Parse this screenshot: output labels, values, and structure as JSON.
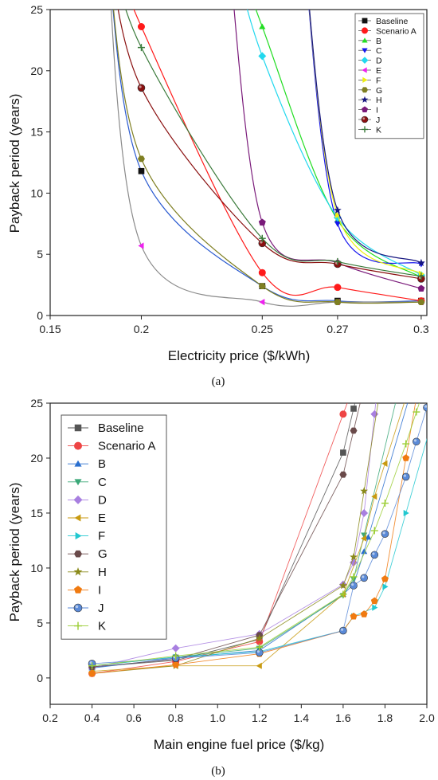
{
  "colors": {
    "Baseline": "#111111",
    "Scenario A": "#ff1a1a",
    "B": "#22dd22",
    "C": "#1515ee",
    "D": "#22d8ee",
    "E": "#ee22ee",
    "F": "#eeee11",
    "G": "#7f7f22",
    "H": "#161680",
    "I": "#7a1a7a",
    "J": "#8a1010",
    "K": "#3a7a3a"
  },
  "colors_b": {
    "Baseline": "#555555",
    "Scenario A": "#ee4444",
    "B": "#2a6fcf",
    "C": "#3aa878",
    "D": "#a87fe0",
    "E": "#c89a10",
    "F": "#22c8d0",
    "G": "#6a4a4a",
    "H": "#8a8a1a",
    "I": "#f07a10",
    "J": "#5a8ad8",
    "K": "#9acd32"
  },
  "chart_data": [
    {
      "type": "line",
      "caption": "(a)",
      "xlabel": "Electricity price ($/kWh)",
      "ylabel": "Payback period (years)",
      "xlim": [
        0.15,
        0.3
      ],
      "ylim": [
        0,
        25
      ],
      "xticks": [
        "0.15",
        "0.2",
        "0.25",
        "0.27",
        "0.3"
      ],
      "yticks": [
        "0",
        "5",
        "10",
        "15",
        "20",
        "25"
      ],
      "x_positions": [
        0.2,
        0.25,
        0.27,
        0.3
      ],
      "legend_position": "top-right",
      "series": [
        {
          "name": "Baseline",
          "marker": "square",
          "points": [
            [
              0.2,
              11.8
            ],
            [
              0.25,
              2.4
            ],
            [
              0.27,
              1.2
            ],
            [
              0.3,
              1.2
            ]
          ]
        },
        {
          "name": "Scenario A",
          "marker": "circle",
          "points": [
            [
              0.2,
              23.6
            ],
            [
              0.25,
              3.5
            ],
            [
              0.27,
              2.3
            ],
            [
              0.3,
              1.2
            ]
          ]
        },
        {
          "name": "B",
          "marker": "tri-up",
          "points": [
            [
              0.25,
              23.6
            ],
            [
              0.27,
              7.8
            ],
            [
              0.3,
              3.1
            ]
          ]
        },
        {
          "name": "C",
          "marker": "tri-down",
          "points": [
            [
              0.27,
              7.5
            ],
            [
              0.3,
              4.2
            ]
          ]
        },
        {
          "name": "D",
          "marker": "diamond",
          "points": [
            [
              0.25,
              21.2
            ],
            [
              0.27,
              8.0
            ],
            [
              0.3,
              3.3
            ]
          ]
        },
        {
          "name": "E",
          "marker": "tri-left",
          "points": [
            [
              0.2,
              5.7
            ],
            [
              0.25,
              1.1
            ],
            [
              0.27,
              1.1
            ],
            [
              0.3,
              1.1
            ]
          ]
        },
        {
          "name": "F",
          "marker": "tri-right",
          "points": [
            [
              0.27,
              8.2
            ],
            [
              0.3,
              3.4
            ]
          ]
        },
        {
          "name": "G",
          "marker": "hexagon",
          "points": [
            [
              0.2,
              12.8
            ],
            [
              0.25,
              2.4
            ],
            [
              0.27,
              1.1
            ],
            [
              0.3,
              1.1
            ]
          ]
        },
        {
          "name": "H",
          "marker": "star",
          "points": [
            [
              0.27,
              8.6
            ],
            [
              0.3,
              4.3
            ]
          ]
        },
        {
          "name": "I",
          "marker": "pentagon",
          "points": [
            [
              0.25,
              7.6
            ],
            [
              0.27,
              4.3
            ],
            [
              0.3,
              2.2
            ]
          ]
        },
        {
          "name": "J",
          "marker": "sphere",
          "points": [
            [
              0.2,
              18.6
            ],
            [
              0.25,
              5.9
            ],
            [
              0.27,
              4.2
            ],
            [
              0.3,
              3.0
            ]
          ]
        },
        {
          "name": "K",
          "marker": "plus",
          "points": [
            [
              0.2,
              21.9
            ],
            [
              0.25,
              6.3
            ],
            [
              0.27,
              4.4
            ],
            [
              0.3,
              3.2
            ]
          ]
        }
      ]
    },
    {
      "type": "line",
      "caption": "(b)",
      "xlabel": "Main engine fuel price ($/kg)",
      "ylabel": "Payback period (years)",
      "xlim": [
        0.2,
        2.0
      ],
      "ylim": [
        -2.4,
        25
      ],
      "xticks": [
        "0.2",
        "0.4",
        "0.6",
        "0.8",
        "1.0",
        "1.2",
        "1.4",
        "1.6",
        "1.8",
        "2.0"
      ],
      "yticks": [
        "0",
        "5",
        "10",
        "15",
        "20",
        "25"
      ],
      "legend_position": "top-left",
      "series": [
        {
          "name": "Baseline",
          "marker": "square",
          "points": [
            [
              0.4,
              1.0
            ],
            [
              0.8,
              1.6
            ],
            [
              1.2,
              3.5
            ],
            [
              1.6,
              20.5
            ],
            [
              1.65,
              24.5
            ]
          ]
        },
        {
          "name": "Scenario A",
          "marker": "circle",
          "points": [
            [
              0.4,
              0.4
            ],
            [
              0.8,
              1.5
            ],
            [
              1.2,
              3.3
            ],
            [
              1.6,
              24.0
            ]
          ]
        },
        {
          "name": "B",
          "marker": "tri-up",
          "points": [
            [
              0.4,
              0.9
            ],
            [
              0.8,
              1.8
            ],
            [
              1.2,
              2.5
            ],
            [
              1.6,
              7.6
            ],
            [
              1.65,
              8.5
            ],
            [
              1.7,
              11.5
            ],
            [
              1.72,
              12.8
            ]
          ]
        },
        {
          "name": "C",
          "marker": "tri-down",
          "points": [
            [
              0.4,
              1.1
            ],
            [
              0.8,
              1.9
            ],
            [
              1.2,
              2.7
            ],
            [
              1.6,
              7.5
            ],
            [
              1.65,
              9.0
            ],
            [
              1.7,
              13.0
            ]
          ]
        },
        {
          "name": "D",
          "marker": "diamond",
          "points": [
            [
              0.4,
              0.9
            ],
            [
              0.8,
              2.7
            ],
            [
              1.2,
              4.0
            ],
            [
              1.6,
              8.5
            ],
            [
              1.65,
              10.5
            ],
            [
              1.7,
              15.0
            ],
            [
              1.75,
              24.0
            ]
          ]
        },
        {
          "name": "E",
          "marker": "tri-left",
          "points": [
            [
              0.4,
              0.6
            ],
            [
              0.8,
              1.1
            ],
            [
              1.2,
              1.1
            ],
            [
              1.6,
              7.6
            ],
            [
              1.7,
              12.7
            ],
            [
              1.75,
              16.5
            ],
            [
              1.8,
              19.5
            ]
          ]
        },
        {
          "name": "F",
          "marker": "tri-right",
          "points": [
            [
              0.4,
              1.1
            ],
            [
              0.8,
              1.9
            ],
            [
              1.2,
              2.4
            ],
            [
              1.6,
              4.3
            ],
            [
              1.65,
              5.6
            ],
            [
              1.75,
              6.4
            ],
            [
              1.8,
              8.3
            ],
            [
              1.9,
              15.0
            ]
          ]
        },
        {
          "name": "G",
          "marker": "hexagon",
          "points": [
            [
              0.4,
              1.0
            ],
            [
              0.8,
              1.7
            ],
            [
              1.2,
              3.9
            ],
            [
              1.6,
              18.5
            ],
            [
              1.65,
              22.5
            ]
          ]
        },
        {
          "name": "H",
          "marker": "star",
          "points": [
            [
              0.4,
              0.4
            ],
            [
              0.8,
              1.1
            ],
            [
              1.2,
              3.6
            ],
            [
              1.6,
              8.4
            ],
            [
              1.65,
              11.0
            ],
            [
              1.7,
              17.0
            ]
          ]
        },
        {
          "name": "I",
          "marker": "pentagon",
          "points": [
            [
              0.4,
              0.4
            ],
            [
              0.8,
              1.2
            ],
            [
              1.2,
              2.2
            ],
            [
              1.6,
              4.3
            ],
            [
              1.65,
              5.6
            ],
            [
              1.7,
              5.8
            ],
            [
              1.75,
              7.0
            ],
            [
              1.8,
              9.0
            ],
            [
              1.9,
              20.0
            ]
          ]
        },
        {
          "name": "J",
          "marker": "sphere",
          "points": [
            [
              0.4,
              1.3
            ],
            [
              0.8,
              1.8
            ],
            [
              1.2,
              2.3
            ],
            [
              1.6,
              4.3
            ],
            [
              1.65,
              8.4
            ],
            [
              1.7,
              9.1
            ],
            [
              1.75,
              11.2
            ],
            [
              1.8,
              13.1
            ],
            [
              1.9,
              18.3
            ],
            [
              1.95,
              21.5
            ],
            [
              2.0,
              24.6
            ]
          ]
        },
        {
          "name": "K",
          "marker": "plus",
          "points": [
            [
              0.4,
              1.1
            ],
            [
              0.8,
              2.0
            ],
            [
              1.2,
              2.8
            ],
            [
              1.6,
              7.6
            ],
            [
              1.65,
              9.2
            ],
            [
              1.75,
              13.4
            ],
            [
              1.8,
              15.9
            ],
            [
              1.9,
              21.3
            ],
            [
              1.95,
              24.2
            ]
          ]
        }
      ]
    }
  ]
}
